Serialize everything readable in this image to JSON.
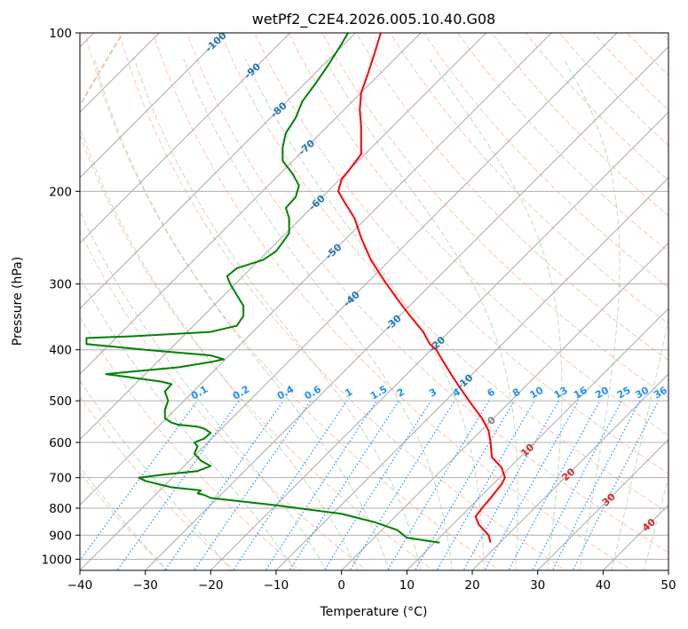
{
  "chart_data": {
    "type": "line",
    "title": "wetPf2_C2E4.2026.005.10.40.G08",
    "xlabel": "Temperature (°C)",
    "ylabel": "Pressure (hPa)",
    "xlim": [
      -40,
      50
    ],
    "ylim": [
      1050,
      100
    ],
    "y_scale": "log",
    "grid": true,
    "x_ticks": [
      "−40",
      "−30",
      "−20",
      "−10",
      "0",
      "10",
      "20",
      "30",
      "40",
      "50"
    ],
    "x_tick_values": [
      -40,
      -30,
      -20,
      -10,
      0,
      10,
      20,
      30,
      40,
      50
    ],
    "y_ticks": [
      "100",
      "200",
      "300",
      "400",
      "500",
      "600",
      "700",
      "800",
      "900",
      "1000"
    ],
    "y_tick_values": [
      100,
      200,
      300,
      400,
      500,
      600,
      700,
      800,
      900,
      1000
    ],
    "series": [
      {
        "role": "temperature",
        "color": "#ff0000",
        "points": [
          [
            22.8,
            930
          ],
          [
            22.5,
            900
          ],
          [
            21.0,
            860
          ],
          [
            20.5,
            830
          ],
          [
            21.5,
            800
          ],
          [
            23.0,
            760
          ],
          [
            24.5,
            720
          ],
          [
            25.0,
            700
          ],
          [
            24.5,
            670
          ],
          [
            23.0,
            640
          ],
          [
            22.8,
            600
          ],
          [
            22.5,
            570
          ],
          [
            21.5,
            540
          ],
          [
            20.0,
            510
          ],
          [
            18.5,
            480
          ],
          [
            17.0,
            450
          ],
          [
            15.5,
            420
          ],
          [
            14.5,
            400
          ],
          [
            13.5,
            390
          ],
          [
            12.5,
            370
          ],
          [
            10.5,
            345
          ],
          [
            8.5,
            320
          ],
          [
            6.5,
            295
          ],
          [
            4.5,
            270
          ],
          [
            3.0,
            245
          ],
          [
            2.0,
            225
          ],
          [
            0.5,
            210
          ],
          [
            -0.5,
            200
          ],
          [
            0.0,
            190
          ],
          [
            1.5,
            180
          ],
          [
            3.0,
            170
          ],
          [
            3.0,
            160
          ],
          [
            3.0,
            150
          ],
          [
            2.8,
            140
          ],
          [
            3.0,
            130
          ],
          [
            4.0,
            120
          ],
          [
            5.0,
            110
          ],
          [
            6.0,
            100
          ]
        ]
      },
      {
        "role": "dewpoint",
        "color": "#008000",
        "points": [
          [
            15.0,
            930
          ],
          [
            10.0,
            910
          ],
          [
            9.5,
            900
          ],
          [
            8.5,
            880
          ],
          [
            5.0,
            850
          ],
          [
            0.0,
            820
          ],
          [
            -10.0,
            790
          ],
          [
            -20.0,
            765
          ],
          [
            -21.0,
            755
          ],
          [
            -22.0,
            750
          ],
          [
            -21.5,
            740
          ],
          [
            -26.0,
            730
          ],
          [
            -30.0,
            710
          ],
          [
            -31.0,
            700
          ],
          [
            -27.0,
            690
          ],
          [
            -22.0,
            680
          ],
          [
            -20.0,
            665
          ],
          [
            -21.5,
            650
          ],
          [
            -22.5,
            630
          ],
          [
            -22.0,
            610
          ],
          [
            -22.5,
            600
          ],
          [
            -21.0,
            590
          ],
          [
            -20.0,
            575
          ],
          [
            -21.0,
            565
          ],
          [
            -22.0,
            560
          ],
          [
            -25.0,
            555
          ],
          [
            -26.0,
            550
          ],
          [
            -27.0,
            540
          ],
          [
            -27.0,
            520
          ],
          [
            -26.5,
            500
          ],
          [
            -27.0,
            480
          ],
          [
            -26.0,
            465
          ],
          [
            -27.5,
            460
          ],
          [
            -33.0,
            450
          ],
          [
            -36.0,
            445
          ],
          [
            -32.0,
            440
          ],
          [
            -25.0,
            432
          ],
          [
            -20.0,
            422
          ],
          [
            -18.0,
            417
          ],
          [
            -20.0,
            410
          ],
          [
            -30.0,
            400
          ],
          [
            -39.0,
            390
          ],
          [
            -39.0,
            380
          ],
          [
            -32.0,
            377
          ],
          [
            -20.0,
            370
          ],
          [
            -16.0,
            360
          ],
          [
            -15.0,
            345
          ],
          [
            -15.0,
            330
          ],
          [
            -16.0,
            315
          ],
          [
            -17.0,
            300
          ],
          [
            -17.5,
            290
          ],
          [
            -16.0,
            280
          ],
          [
            -12.0,
            270
          ],
          [
            -10.0,
            260
          ],
          [
            -9.0,
            250
          ],
          [
            -8.0,
            240
          ],
          [
            -8.0,
            225
          ],
          [
            -8.5,
            215
          ],
          [
            -7.0,
            205
          ],
          [
            -6.5,
            195
          ],
          [
            -7.5,
            185
          ],
          [
            -9.0,
            175
          ],
          [
            -9.0,
            165
          ],
          [
            -8.5,
            155
          ],
          [
            -7.0,
            145
          ],
          [
            -6.0,
            135
          ],
          [
            -4.0,
            125
          ],
          [
            -2.0,
            115
          ],
          [
            0.0,
            105
          ],
          [
            1.0,
            100
          ]
        ]
      }
    ],
    "isotherm_labels": [
      "-100",
      "-90",
      "-80",
      "-70",
      "-60",
      "-50",
      "-40",
      "-30",
      "-20",
      "-10"
    ],
    "isotherm_label_values": [
      -100,
      -90,
      -80,
      -70,
      -60,
      -50,
      -40,
      -30,
      -20,
      -10
    ],
    "mixing_ratio_labels": [
      "0.1",
      "0.2",
      "0.4",
      "0.6",
      "1",
      "1.5",
      "2",
      "3",
      "4",
      "6",
      "8",
      "10",
      "13",
      "16",
      "20",
      "25",
      "30",
      "36"
    ],
    "mixing_ratio_values": [
      0.1,
      0.2,
      0.4,
      0.6,
      1,
      1.5,
      2,
      3,
      4,
      6,
      8,
      10,
      13,
      16,
      20,
      25,
      30,
      36
    ],
    "moist_adiabat_labels": [
      "0",
      "10",
      "20",
      "30",
      "40"
    ],
    "moist_adiabat_values": [
      0,
      10,
      20,
      30,
      40
    ],
    "colors": {
      "isotherm": "#aaaaaa",
      "isotherm_label": "#1f77b4",
      "dry_adiabat": "#ffa07a",
      "moist_adiabat": "#8fbc8f",
      "mixing_ratio": "#1e90ff",
      "mixing_ratio_label": "#1e90ff",
      "moist_label_zero": "#808080",
      "moist_label_warm": "#d62728",
      "tan_curve": "#d2b48c"
    }
  }
}
